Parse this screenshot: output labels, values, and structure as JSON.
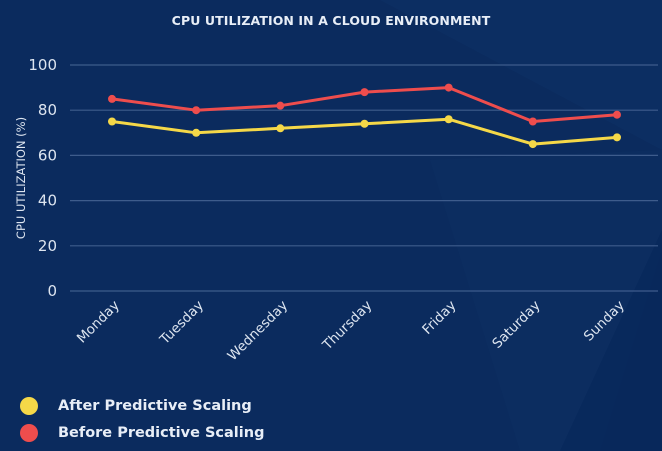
{
  "chart_data": {
    "type": "line",
    "title": "CPU UTILIZATION IN A CLOUD ENVIRONMENT",
    "xlabel": "",
    "ylabel": "CPU UTILIZATION (%)",
    "categories": [
      "Monday",
      "Tuesday",
      "Wednesday",
      "Thursday",
      "Friday",
      "Saturday",
      "Sunday"
    ],
    "ylim": [
      0,
      100
    ],
    "yticks": [
      0,
      20,
      40,
      60,
      80,
      100
    ],
    "ytick_labels": [
      "0",
      "20",
      "40",
      "60",
      "80",
      "100"
    ],
    "grid": "horizontal",
    "legend_position": "bottom-left",
    "series": [
      {
        "name": "Before Predictive Scaling",
        "color": "#EE4D4D",
        "values": [
          85,
          80,
          82,
          88,
          90,
          75,
          78
        ]
      },
      {
        "name": "After Predictive Scaling",
        "color": "#F5D848",
        "values": [
          75,
          70,
          72,
          74,
          76,
          65,
          68
        ]
      }
    ],
    "legend": [
      {
        "label": "After Predictive Scaling",
        "color": "#F5D848"
      },
      {
        "label": "Before Predictive Scaling",
        "color": "#EE4D4D"
      }
    ]
  },
  "colors": {
    "background": "#0B2B5E",
    "text": "#E8EEF7",
    "grid": "#3E5C8C"
  }
}
